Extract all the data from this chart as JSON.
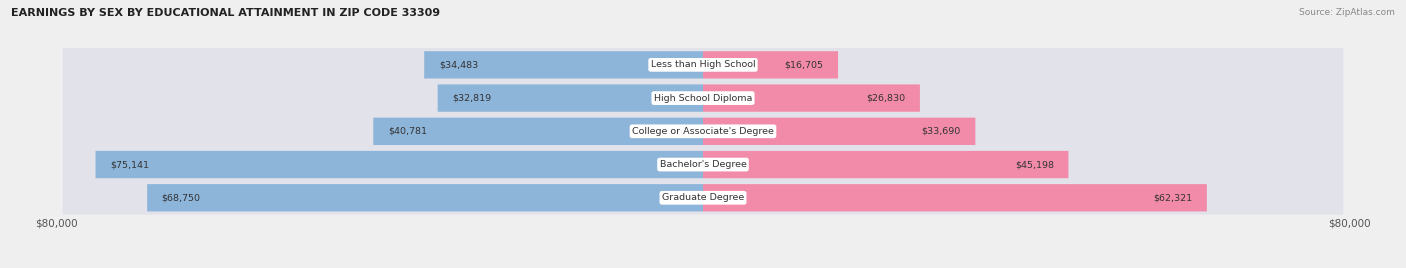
{
  "title": "EARNINGS BY SEX BY EDUCATIONAL ATTAINMENT IN ZIP CODE 33309",
  "source": "Source: ZipAtlas.com",
  "categories": [
    "Less than High School",
    "High School Diploma",
    "College or Associate's Degree",
    "Bachelor's Degree",
    "Graduate Degree"
  ],
  "male_values": [
    34483,
    32819,
    40781,
    75141,
    68750
  ],
  "female_values": [
    16705,
    26830,
    33690,
    45198,
    62321
  ],
  "max_value": 80000,
  "male_color": "#8DB4D9",
  "female_color": "#F28BAA",
  "bg_color": "#EFEFEF",
  "bar_bg_color": "#E2E2EB",
  "row_sep_color": "#FFFFFF",
  "axis_label": "$80,000"
}
